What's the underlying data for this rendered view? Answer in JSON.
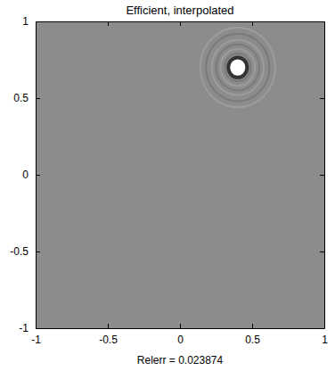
{
  "chart_data": {
    "type": "image",
    "title": "Efficient, interpolated",
    "x_label": "Relerr = 0.023874",
    "xlim": [
      -1,
      1
    ],
    "ylim": [
      -1,
      1
    ],
    "xticks": [
      -1,
      -0.5,
      0,
      0.5,
      1
    ],
    "yticks": [
      -1,
      -0.5,
      0,
      0.5,
      1
    ],
    "color": "#8c8c8c",
    "objects": [
      {
        "x": 0.4,
        "y": 0.7,
        "r": 0.065,
        "color": "#ffffff"
      }
    ],
    "ripples": [
      0.09,
      0.12,
      0.15,
      0.18,
      0.22,
      0.26
    ]
  }
}
